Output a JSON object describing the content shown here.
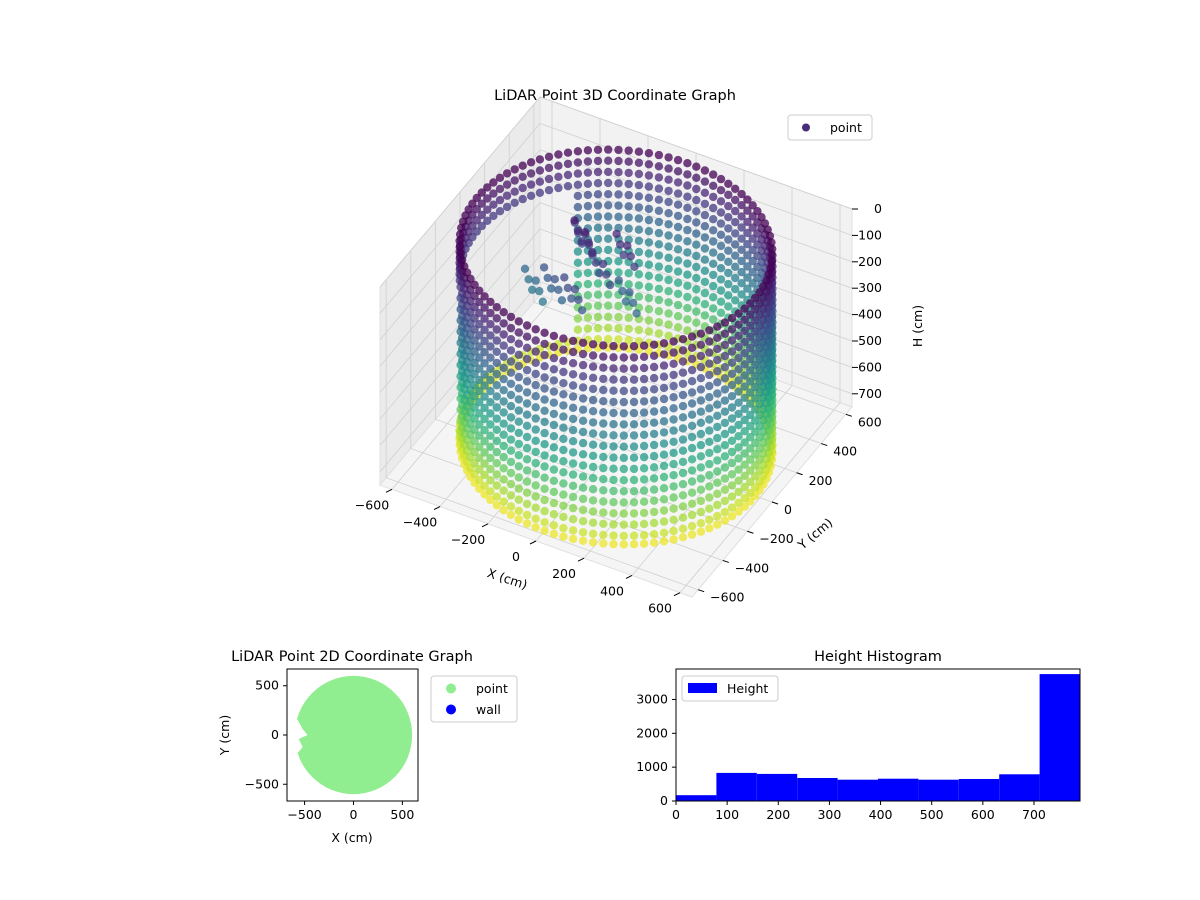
{
  "chart_data": [
    {
      "type": "scatter",
      "projection": "3d",
      "title": "LiDAR Point 3D Coordinate Graph",
      "xlabel": "X (cm)",
      "ylabel": "Y (cm)",
      "zlabel": "H (cm)",
      "xticks": [
        "−600",
        "−400",
        "−200",
        "0",
        "200",
        "400",
        "600"
      ],
      "yticks": [
        "−600",
        "−400",
        "−200",
        "0",
        "200",
        "400",
        "600"
      ],
      "zticks": [
        "0",
        "100",
        "200",
        "300",
        "400",
        "500",
        "600",
        "700"
      ],
      "xlim": [
        -650,
        650
      ],
      "ylim": [
        -650,
        650
      ],
      "zlim": [
        0,
        750
      ],
      "z_axis_inverted": true,
      "legend": {
        "entries": [
          {
            "label": "point",
            "color": "#472c7a"
          }
        ],
        "placement": "upper-right"
      },
      "colormap": "viridis",
      "color_encoding": "height",
      "structure": {
        "shape": "cylinder",
        "radius_cm": 580,
        "height_range_cm": [
          0,
          780
        ],
        "opening_side": "-X",
        "interior_cluster": "points scattered along the inner surface near the top"
      },
      "grid": true
    },
    {
      "type": "scatter",
      "title": "LiDAR Point 2D Coordinate Graph",
      "xlabel": "X (cm)",
      "ylabel": "Y (cm)",
      "xticks": [
        "−500",
        "0",
        "500"
      ],
      "yticks": [
        "−500",
        "0",
        "500"
      ],
      "xlim": [
        -680,
        660
      ],
      "ylim": [
        -670,
        670
      ],
      "series": [
        {
          "name": "point",
          "color": "#90ee90",
          "shape": "filled disk of radius ≈ 600 cm with notch on the -X side"
        },
        {
          "name": "wall",
          "color": "#0000ff",
          "values": []
        }
      ],
      "legend": {
        "placement": "outside-right"
      },
      "grid": false
    },
    {
      "type": "bar",
      "subtype": "histogram",
      "title": "Height Histogram",
      "xlabel": "",
      "ylabel": "",
      "xticks": [
        "0",
        "100",
        "200",
        "300",
        "400",
        "500",
        "600",
        "700"
      ],
      "yticks": [
        "0",
        "1000",
        "2000",
        "3000"
      ],
      "xlim": [
        0,
        790
      ],
      "ylim": [
        0,
        3900
      ],
      "bin_edges": [
        0,
        79,
        158,
        237,
        316,
        395,
        474,
        553,
        632,
        711,
        790
      ],
      "series": [
        {
          "name": "Height",
          "color": "#0000ff",
          "values": [
            170,
            830,
            800,
            680,
            630,
            660,
            630,
            650,
            790,
            3750
          ]
        }
      ],
      "legend": {
        "placement": "upper-left"
      },
      "grid": false
    }
  ]
}
